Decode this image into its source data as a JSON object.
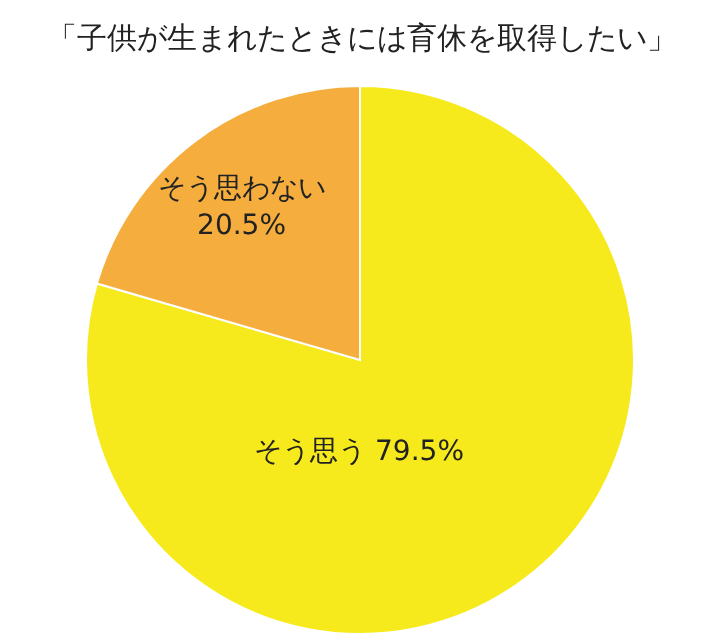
{
  "chart_data": {
    "type": "pie",
    "title": "「子供が生まれたときには育休を取得したい」",
    "categories": [
      "そう思う",
      "そう思わない"
    ],
    "values": [
      79.5,
      20.5
    ],
    "colors": [
      "#f7ea1c",
      "#f5ae3e"
    ],
    "value_labels": [
      "79.5%",
      "20.5%"
    ]
  }
}
